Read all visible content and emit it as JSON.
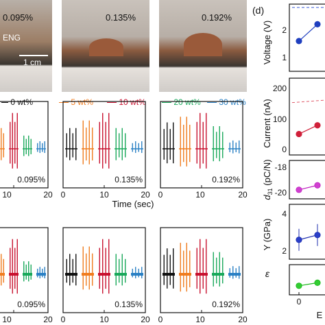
{
  "photos": {
    "strains": [
      "0.095%",
      "0.135%",
      "0.192%"
    ],
    "device_label": "ENG",
    "scale_bar_label": "1 cm"
  },
  "legend": {
    "entries": [
      {
        "label": "0 wt%",
        "color": "#111111"
      },
      {
        "label": "5 wt%",
        "color": "#f07c1e"
      },
      {
        "label": "10 wt%",
        "color": "#c8102e"
      },
      {
        "label": "20 wt%",
        "color": "#18a85a"
      },
      {
        "label": "30 wt%",
        "color": "#2a80c4"
      }
    ]
  },
  "time_axis": {
    "label": "Time (sec)",
    "ticks": [
      "0",
      "10",
      "20"
    ]
  },
  "panel_d_label": "(d)",
  "chart_data": [
    {
      "type": "line",
      "panel": "signal-voltage",
      "xlabel": "Time (sec)",
      "xlim": [
        0,
        20
      ],
      "strains": [
        "0.095%",
        "0.135%",
        "0.192%"
      ],
      "series": [
        {
          "name": "0 wt%",
          "x_range": [
            0,
            4
          ]
        },
        {
          "name": "5 wt%",
          "x_range": [
            4,
            8
          ]
        },
        {
          "name": "10 wt%",
          "x_range": [
            8,
            12
          ]
        },
        {
          "name": "20 wt%",
          "x_range": [
            12,
            16
          ]
        },
        {
          "name": "30 wt%",
          "x_range": [
            16,
            20
          ]
        }
      ]
    },
    {
      "type": "line",
      "panel": "signal-current",
      "xlim": [
        0,
        20
      ],
      "strains": [
        "0.095%",
        "0.135%",
        "0.192%"
      ]
    },
    {
      "type": "scatter",
      "panel": "voltage-vs-filler",
      "ylabel": "Voltage (V)",
      "yticks": [
        "2",
        "1"
      ],
      "x": [
        0,
        5
      ],
      "values": [
        1.5,
        2.0
      ],
      "reference_line": 2.5
    },
    {
      "type": "scatter",
      "panel": "current-vs-filler",
      "ylabel": "Current (nA)",
      "yticks": [
        "200",
        "100",
        "0"
      ],
      "x": [
        0,
        5
      ],
      "values": [
        60,
        85
      ],
      "reference_line": 150
    },
    {
      "type": "scatter",
      "panel": "d31-vs-filler",
      "ylabel": "d31 (pC/N)",
      "yticks": [
        "-18",
        "-20"
      ],
      "x": [
        0,
        5
      ],
      "values": [
        -20.0,
        -19.6
      ]
    },
    {
      "type": "scatter",
      "panel": "modulus-vs-filler",
      "ylabel": "Y (GPa)",
      "yticks": [
        "4",
        "2"
      ],
      "x": [
        0,
        5
      ],
      "values": [
        2.2,
        2.5
      ]
    },
    {
      "type": "scatter",
      "panel": "permittivity-vs-filler",
      "ylabel": "ε",
      "x": [
        0,
        5
      ],
      "values": [
        9.0,
        10.0
      ]
    }
  ],
  "bottom_axis": {
    "ticks": [
      "0"
    ],
    "partial_label": "E"
  }
}
